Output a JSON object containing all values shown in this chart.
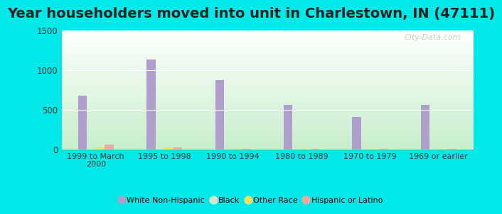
{
  "title": "Year householders moved into unit in Charlestown, IN (47111)",
  "categories": [
    "1999 to March\n2000",
    "1995 to 1998",
    "1990 to 1994",
    "1980 to 1989",
    "1970 to 1979",
    "1969 or earlier"
  ],
  "series": {
    "White Non-Hispanic": [
      675,
      1130,
      870,
      560,
      405,
      555
    ],
    "Black": [
      8,
      8,
      4,
      4,
      4,
      8
    ],
    "Other Race": [
      22,
      20,
      3,
      3,
      3,
      3
    ],
    "Hispanic or Latino": [
      55,
      25,
      3,
      3,
      3,
      3
    ]
  },
  "colors": {
    "White Non-Hispanic": "#b09fcc",
    "Black": "#d4eacc",
    "Other Race": "#f0e060",
    "Hispanic or Latino": "#f0a8a0"
  },
  "ylim": [
    0,
    1500
  ],
  "yticks": [
    0,
    500,
    1000,
    1500
  ],
  "background_top": "#ffffff",
  "background_bottom": "#c8eecc",
  "outer_background": "#00e8e8",
  "title_fontsize": 14,
  "watermark": "City-Data.com",
  "legend_labels": [
    "White Non-Hispanic",
    "Black",
    "Other Race",
    "Hispanic or Latino"
  ]
}
